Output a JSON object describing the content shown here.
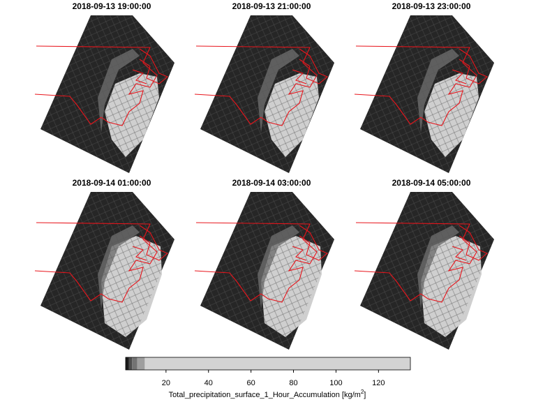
{
  "panels": [
    {
      "title": "2018-09-13 19:00:00"
    },
    {
      "title": "2018-09-13 21:00:00"
    },
    {
      "title": "2018-09-13 23:00:00"
    },
    {
      "title": "2018-09-14 01:00:00"
    },
    {
      "title": "2018-09-14 03:00:00"
    },
    {
      "title": "2018-09-14 05:00:00"
    }
  ],
  "colorbar": {
    "label": "Total_precipitation_surface_1_Hour_Accumulation",
    "unit": "kg/m",
    "unit_power": "2",
    "lim": [
      1,
      135
    ],
    "ticks": [
      20,
      40,
      60,
      80,
      100,
      120
    ],
    "breaks": [
      1,
      2.5,
      4,
      6.5,
      10,
      135
    ],
    "colors": [
      "#1a1a1a",
      "#4d4d4d",
      "#737373",
      "#9e9e9e",
      "#d3d3d3"
    ]
  }
}
